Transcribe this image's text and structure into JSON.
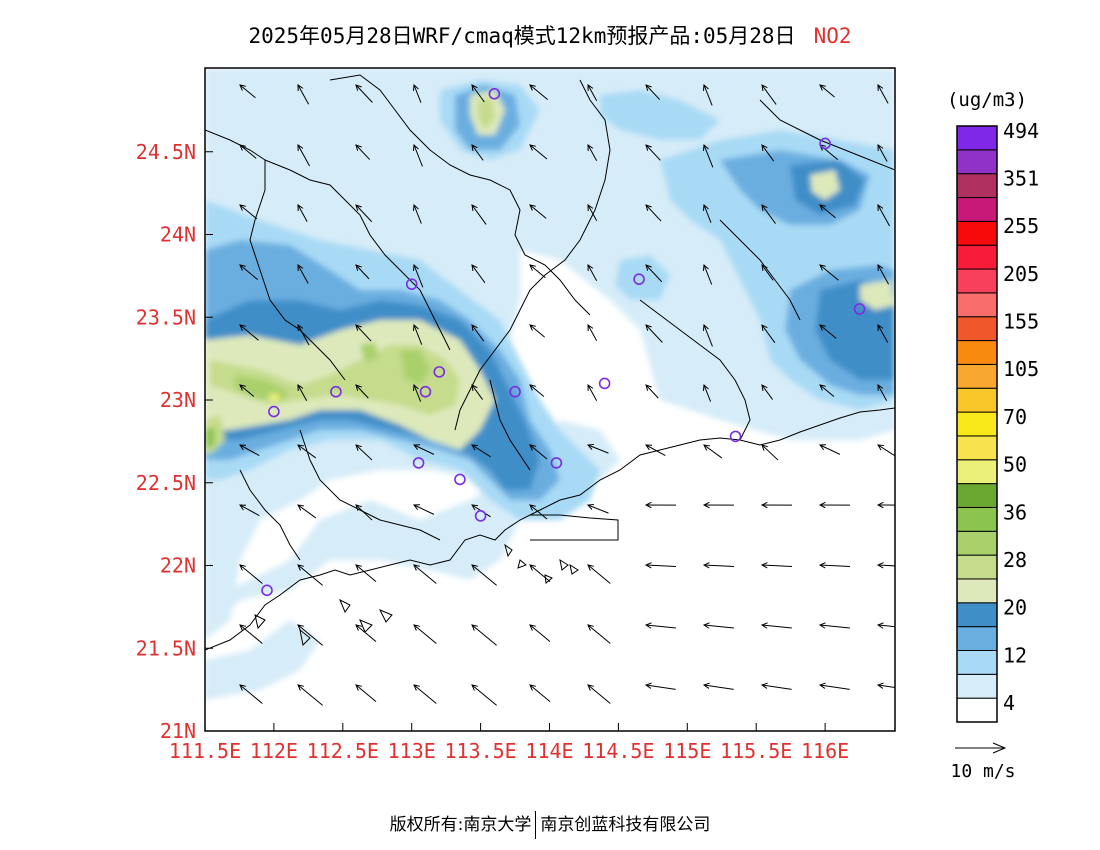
{
  "title": {
    "main": "2025年05月28日WRF/cmaq模式12km预报产品:05月28日",
    "pollutant": "NO2"
  },
  "map": {
    "lon_labels": [
      "111.5E",
      "112E",
      "112.5E",
      "113E",
      "113.5E",
      "114E",
      "114.5E",
      "115E",
      "115.5E",
      "116E"
    ],
    "lat_labels": [
      "21N",
      "21.5N",
      "22N",
      "22.5N",
      "23N",
      "23.5N",
      "24N",
      "24.5N"
    ],
    "lon_range": [
      111.5,
      116.5
    ],
    "lat_range": [
      21.0,
      25.0
    ],
    "axis_label_color": "#e03030",
    "monitoring_stations": [
      {
        "lon": 113.6,
        "lat": 24.85
      },
      {
        "lon": 116.0,
        "lat": 24.55
      },
      {
        "lon": 113.0,
        "lat": 23.7
      },
      {
        "lon": 114.65,
        "lat": 23.73
      },
      {
        "lon": 116.25,
        "lat": 23.55
      },
      {
        "lon": 113.2,
        "lat": 23.17
      },
      {
        "lon": 112.45,
        "lat": 23.05
      },
      {
        "lon": 113.1,
        "lat": 23.05
      },
      {
        "lon": 113.75,
        "lat": 23.05
      },
      {
        "lon": 114.4,
        "lat": 23.1
      },
      {
        "lon": 112.0,
        "lat": 22.93
      },
      {
        "lon": 115.35,
        "lat": 22.78
      },
      {
        "lon": 113.05,
        "lat": 22.62
      },
      {
        "lon": 113.35,
        "lat": 22.52
      },
      {
        "lon": 114.05,
        "lat": 22.62
      },
      {
        "lon": 113.5,
        "lat": 22.3
      },
      {
        "lon": 111.95,
        "lat": 21.85
      }
    ]
  },
  "colorbar": {
    "unit": "(ug/m3)",
    "colors": [
      "#ffffff",
      "#d6ecf8",
      "#a8daf5",
      "#6aaee0",
      "#3f8ec8",
      "#dde9bb",
      "#c4dc8c",
      "#a9d06a",
      "#8cc450",
      "#6aa832",
      "#ebf07a",
      "#f8e34e",
      "#f8e81a",
      "#f8c628",
      "#f8a830",
      "#f88a10",
      "#f0582c",
      "#f86c6c",
      "#f8405c",
      "#f81c3a",
      "#f80a0a",
      "#c81878",
      "#b03060",
      "#9032c8",
      "#8028e8"
    ],
    "tick_labels": [
      "4",
      "12",
      "20",
      "28",
      "36",
      "50",
      "70",
      "105",
      "155",
      "205",
      "255",
      "351",
      "494"
    ]
  },
  "wind_legend": {
    "label": "10 m/s"
  },
  "footer": {
    "copyright": "版权所有:南京大学",
    "company": "南京创蓝科技有限公司"
  }
}
